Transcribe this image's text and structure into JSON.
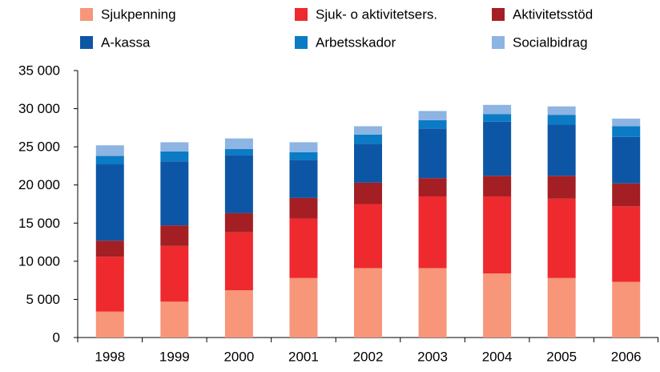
{
  "chart_data": {
    "type": "stacked_bar",
    "categories": [
      "1998",
      "1999",
      "2000",
      "2001",
      "2002",
      "2003",
      "2004",
      "2005",
      "2006"
    ],
    "series": [
      {
        "name": "Sjukpenning",
        "color": "#f79679",
        "values": [
          3400,
          4700,
          6200,
          7800,
          9100,
          9100,
          8400,
          7800,
          7300
        ]
      },
      {
        "name": "Sjuk- o aktivitetsers.",
        "color": "#ee2a2e",
        "values": [
          7200,
          7300,
          7600,
          7800,
          8400,
          9400,
          10100,
          10400,
          9900
        ]
      },
      {
        "name": "Aktivitetsstöd",
        "color": "#a31f24",
        "values": [
          2100,
          2700,
          2500,
          2700,
          2800,
          2400,
          2700,
          3000,
          3000
        ]
      },
      {
        "name": "A-kassa",
        "color": "#0d56a6",
        "values": [
          10000,
          8400,
          7600,
          5000,
          5100,
          6500,
          7100,
          6700,
          6100
        ]
      },
      {
        "name": "Arbetsskador",
        "color": "#0b7bc5",
        "values": [
          1100,
          1300,
          800,
          1000,
          1200,
          1100,
          1000,
          1300,
          1400
        ]
      },
      {
        "name": "Socialbidrag",
        "color": "#8db4e2",
        "values": [
          1400,
          1200,
          1400,
          1300,
          1100,
          1200,
          1200,
          1100,
          1000
        ]
      }
    ],
    "ylim": [
      0,
      35000
    ],
    "yticks": [
      0,
      {
        "value": 5000,
        "label": "5 000"
      },
      {
        "value": 10000,
        "label": "10 000"
      },
      {
        "value": 15000,
        "label": "15 000"
      },
      {
        "value": 20000,
        "label": "20 000"
      },
      {
        "value": 25000,
        "label": "25 000"
      },
      {
        "value": 30000,
        "label": "30 000"
      },
      {
        "value": 35000,
        "label": "35 000"
      }
    ],
    "grid": false,
    "legend": "top"
  }
}
